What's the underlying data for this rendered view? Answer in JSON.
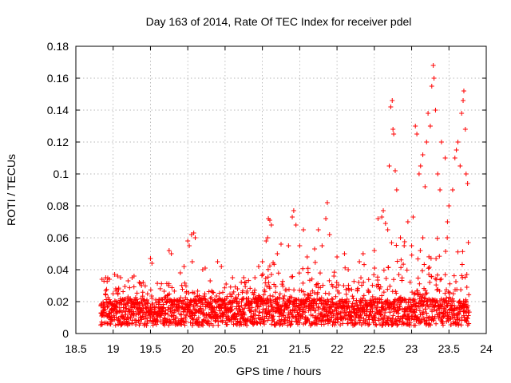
{
  "chart_data": {
    "type": "scatter",
    "title": "Day 163 of 2014, Rate Of TEC Index for receiver pdel",
    "xlabel": "GPS time / hours",
    "ylabel": "ROTI / TECUs",
    "xlim": [
      18.5,
      24
    ],
    "ylim": [
      0,
      0.18
    ],
    "xticks": [
      "18.5",
      "19",
      "19.5",
      "20",
      "20.5",
      "21",
      "21.5",
      "22",
      "22.5",
      "23",
      "23.5",
      "24"
    ],
    "yticks": [
      "0",
      "0.02",
      "0.04",
      "0.06",
      "0.08",
      "0.1",
      "0.12",
      "0.14",
      "0.16",
      "0.18"
    ],
    "grid": true,
    "marker": "+",
    "color": "#ff0000",
    "series": [
      {
        "name": "ROTI",
        "x_range": [
          18.83,
          23.77
        ],
        "density_note": "dense cluster of points mostly 0.005-0.03 TECUs across the whole time range",
        "points": [
          [
            18.85,
            0.034
          ],
          [
            18.9,
            0.035
          ],
          [
            18.95,
            0.034
          ],
          [
            19.02,
            0.037
          ],
          [
            19.06,
            0.036
          ],
          [
            19.1,
            0.035
          ],
          [
            19.2,
            0.033
          ],
          [
            19.28,
            0.036
          ],
          [
            19.35,
            0.032
          ],
          [
            19.5,
            0.047
          ],
          [
            19.52,
            0.044
          ],
          [
            19.75,
            0.052
          ],
          [
            19.78,
            0.05
          ],
          [
            19.9,
            0.038
          ],
          [
            19.95,
            0.042
          ],
          [
            20.0,
            0.058
          ],
          [
            20.02,
            0.055
          ],
          [
            20.05,
            0.062
          ],
          [
            20.08,
            0.063
          ],
          [
            20.1,
            0.06
          ],
          [
            20.06,
            0.045
          ],
          [
            20.2,
            0.04
          ],
          [
            20.3,
            0.033
          ],
          [
            20.4,
            0.045
          ],
          [
            20.45,
            0.042
          ],
          [
            20.6,
            0.035
          ],
          [
            20.75,
            0.035
          ],
          [
            20.9,
            0.035
          ],
          [
            20.95,
            0.042
          ],
          [
            21.0,
            0.045
          ],
          [
            21.05,
            0.058
          ],
          [
            21.07,
            0.06
          ],
          [
            21.08,
            0.072
          ],
          [
            21.1,
            0.071
          ],
          [
            21.12,
            0.068
          ],
          [
            21.2,
            0.05
          ],
          [
            21.25,
            0.056
          ],
          [
            21.35,
            0.055
          ],
          [
            21.4,
            0.073
          ],
          [
            21.42,
            0.077
          ],
          [
            21.45,
            0.068
          ],
          [
            21.5,
            0.055
          ],
          [
            21.55,
            0.065
          ],
          [
            21.6,
            0.048
          ],
          [
            21.7,
            0.053
          ],
          [
            21.75,
            0.065
          ],
          [
            21.8,
            0.055
          ],
          [
            21.85,
            0.072
          ],
          [
            21.87,
            0.082
          ],
          [
            21.9,
            0.062
          ],
          [
            22.0,
            0.048
          ],
          [
            22.1,
            0.05
          ],
          [
            22.15,
            0.04
          ],
          [
            22.3,
            0.045
          ],
          [
            22.35,
            0.05
          ],
          [
            22.5,
            0.052
          ],
          [
            22.55,
            0.072
          ],
          [
            22.6,
            0.073
          ],
          [
            22.62,
            0.077
          ],
          [
            22.65,
            0.069
          ],
          [
            22.68,
            0.065
          ],
          [
            22.7,
            0.105
          ],
          [
            22.72,
            0.142
          ],
          [
            22.74,
            0.146
          ],
          [
            22.75,
            0.128
          ],
          [
            22.76,
            0.125
          ],
          [
            22.78,
            0.102
          ],
          [
            22.8,
            0.09
          ],
          [
            22.85,
            0.06
          ],
          [
            22.9,
            0.055
          ],
          [
            22.95,
            0.07
          ],
          [
            23.0,
            0.055
          ],
          [
            23.02,
            0.073
          ],
          [
            23.05,
            0.13
          ],
          [
            23.07,
            0.125
          ],
          [
            23.1,
            0.1
          ],
          [
            23.12,
            0.105
          ],
          [
            23.15,
            0.112
          ],
          [
            23.18,
            0.092
          ],
          [
            23.2,
            0.12
          ],
          [
            23.22,
            0.138
          ],
          [
            23.25,
            0.13
          ],
          [
            23.27,
            0.155
          ],
          [
            23.29,
            0.168
          ],
          [
            23.3,
            0.16
          ],
          [
            23.32,
            0.14
          ],
          [
            23.35,
            0.1
          ],
          [
            23.38,
            0.09
          ],
          [
            23.4,
            0.12
          ],
          [
            23.45,
            0.11
          ],
          [
            23.48,
            0.07
          ],
          [
            23.5,
            0.08
          ],
          [
            23.55,
            0.09
          ],
          [
            23.58,
            0.11
          ],
          [
            23.6,
            0.115
          ],
          [
            23.62,
            0.12
          ],
          [
            23.65,
            0.105
          ],
          [
            23.67,
            0.138
          ],
          [
            23.69,
            0.146
          ],
          [
            23.7,
            0.152
          ],
          [
            23.72,
            0.128
          ],
          [
            23.73,
            0.1
          ],
          [
            23.75,
            0.094
          ],
          [
            23.76,
            0.057
          ],
          [
            23.74,
            0.037
          ],
          [
            23.68,
            0.035
          ]
        ]
      }
    ]
  }
}
